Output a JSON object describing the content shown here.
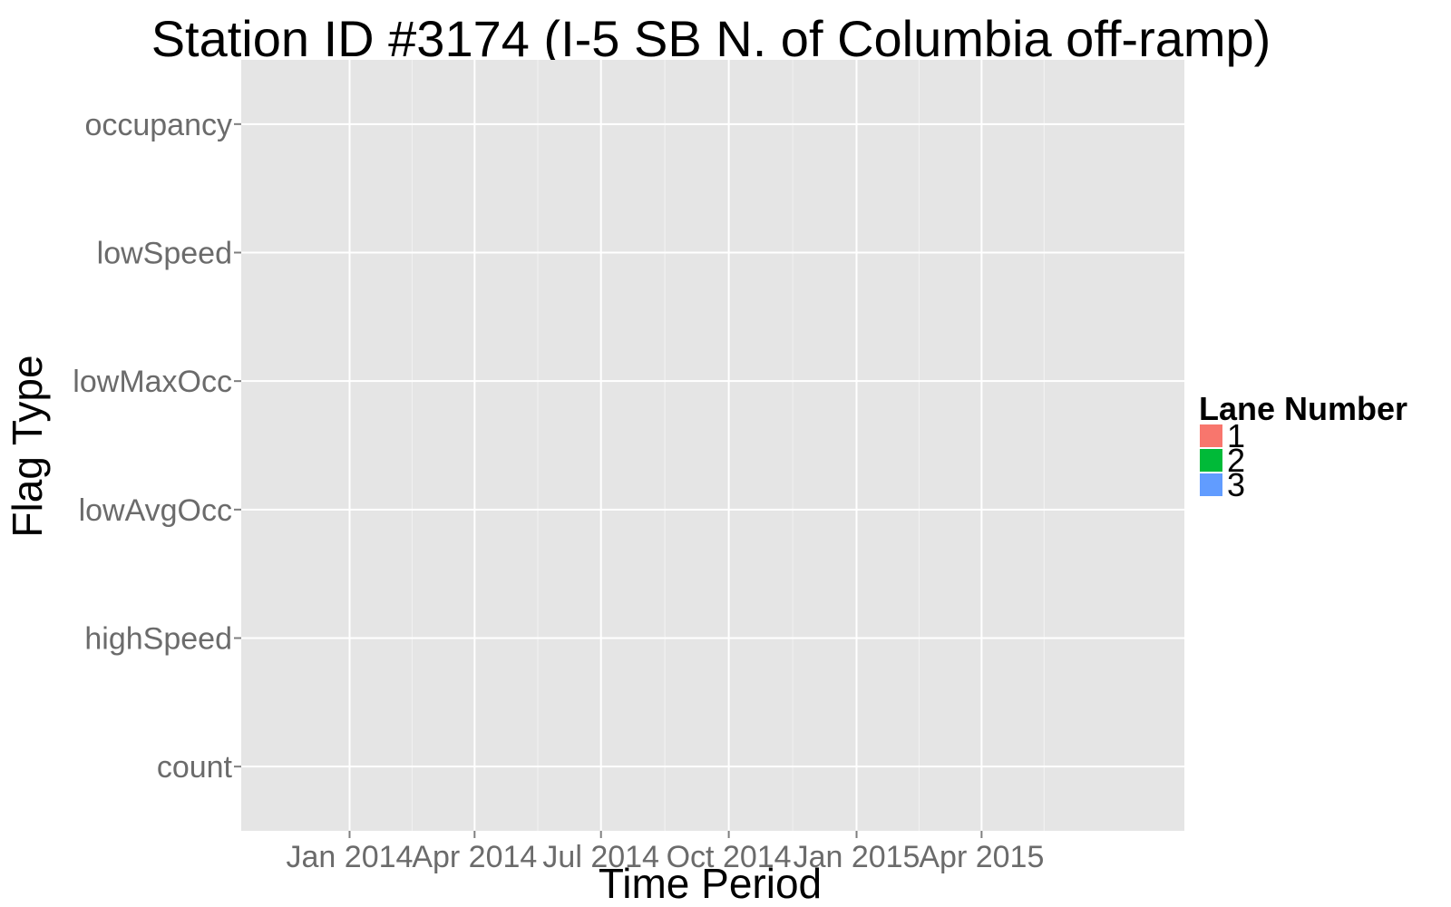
{
  "chart_data": {
    "type": "heatmap",
    "title": "Station ID #3174 (I-5 SB N. of Columbia off-ramp)",
    "xlabel": "Time Period",
    "ylabel": "Flag Type",
    "x_tick_labels": [
      "Jan 2014",
      "Apr 2014",
      "Jul 2014",
      "Oct 2014",
      "Jan 2015",
      "Apr 2015"
    ],
    "x_ticks": [
      "2014-01-01",
      "2014-04-01",
      "2014-07-01",
      "2014-10-01",
      "2015-01-01",
      "2015-04-01"
    ],
    "xlim": [
      "2013-10-15",
      "2015-08-25"
    ],
    "categories": [
      "count",
      "highSpeed",
      "lowAvgOcc",
      "lowMaxOcc",
      "lowSpeed",
      "occupancy"
    ],
    "legend": {
      "title": "Lane Number",
      "position": "right",
      "entries": [
        {
          "label": "1",
          "color": "#F8766D"
        },
        {
          "label": "2",
          "color": "#00BA38"
        },
        {
          "label": "3",
          "color": "#619CFF"
        }
      ]
    },
    "series": [],
    "grid": true,
    "panel_background": "#E5E5E5",
    "grid_color": "#FFFFFF"
  }
}
